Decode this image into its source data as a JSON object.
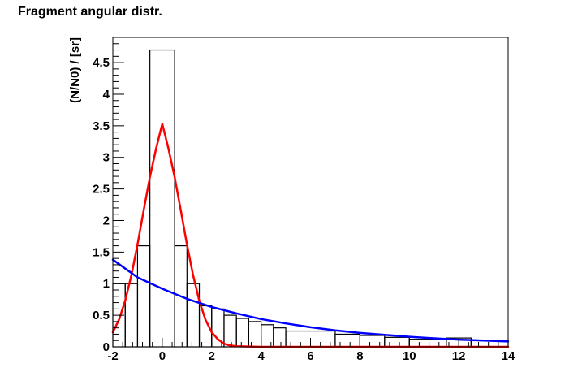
{
  "chart_data": {
    "type": "histogram",
    "title": "Fragment angular distr.",
    "xlabel": "",
    "ylabel": "(N/N0) / [sr]",
    "xlim": [
      -2,
      14
    ],
    "ylim": [
      0,
      4.9
    ],
    "x_ticks": [
      -2,
      0,
      2,
      4,
      6,
      8,
      10,
      12,
      14
    ],
    "y_ticks": [
      0,
      0.5,
      1,
      1.5,
      2,
      2.5,
      3,
      3.5,
      4,
      4.5
    ],
    "x_tick_labels": [
      "-2",
      "0",
      "2",
      "4",
      "6",
      "8",
      "10",
      "12",
      "14"
    ],
    "y_tick_labels": [
      "0",
      "0.5",
      "1",
      "1.5",
      "2",
      "2.5",
      "3",
      "3.5",
      "4",
      "4.5"
    ],
    "grid": false,
    "legend": "none",
    "histogram": {
      "color": "#000000",
      "bins": [
        {
          "x0": -2.0,
          "x1": -1.5,
          "y": 1.0
        },
        {
          "x0": -1.5,
          "x1": -1.0,
          "y": 1.0
        },
        {
          "x0": -1.0,
          "x1": -0.5,
          "y": 1.6
        },
        {
          "x0": -0.5,
          "x1": 0.5,
          "y": 4.7
        },
        {
          "x0": 0.5,
          "x1": 1.0,
          "y": 1.6
        },
        {
          "x0": 1.0,
          "x1": 1.5,
          "y": 1.0
        },
        {
          "x0": 1.5,
          "x1": 2.0,
          "y": 0.65
        },
        {
          "x0": 2.0,
          "x1": 2.5,
          "y": 0.6
        },
        {
          "x0": 2.5,
          "x1": 3.0,
          "y": 0.5
        },
        {
          "x0": 3.0,
          "x1": 3.5,
          "y": 0.45
        },
        {
          "x0": 3.5,
          "x1": 4.0,
          "y": 0.4
        },
        {
          "x0": 4.0,
          "x1": 4.5,
          "y": 0.35
        },
        {
          "x0": 4.5,
          "x1": 5.0,
          "y": 0.3
        },
        {
          "x0": 5.0,
          "x1": 7.0,
          "y": 0.25
        },
        {
          "x0": 7.0,
          "x1": 8.0,
          "y": 0.2
        },
        {
          "x0": 8.0,
          "x1": 9.0,
          "y": 0.18
        },
        {
          "x0": 9.0,
          "x1": 10.0,
          "y": 0.15
        },
        {
          "x0": 10.0,
          "x1": 11.5,
          "y": 0.12
        },
        {
          "x0": 11.5,
          "x1": 12.5,
          "y": 0.14
        },
        {
          "x0": 12.5,
          "x1": 14.0,
          "y": 0.1
        }
      ]
    },
    "curves": [
      {
        "color": "#ff0000",
        "x": [
          -2.0,
          -1.75,
          -1.5,
          -1.25,
          -1.0,
          -0.75,
          -0.5,
          -0.25,
          0.0,
          0.25,
          0.5,
          0.75,
          1.0,
          1.25,
          1.5,
          1.75,
          2.0,
          2.25,
          2.5,
          2.75,
          3.0,
          4.0,
          6.0,
          8.0,
          10.0,
          12.0,
          14.0
        ],
        "y": [
          0.23,
          0.43,
          0.73,
          1.13,
          1.62,
          2.16,
          2.69,
          3.14,
          3.53,
          3.14,
          2.69,
          2.16,
          1.62,
          1.13,
          0.73,
          0.43,
          0.23,
          0.12,
          0.05,
          0.02,
          0.01,
          0.0,
          0.0,
          0.0,
          0.0,
          0.0,
          0.0
        ]
      },
      {
        "color": "#0000ff",
        "x": [
          -2.0,
          -1.0,
          0.0,
          1.0,
          2.0,
          3.0,
          4.0,
          5.0,
          6.0,
          7.0,
          8.0,
          9.0,
          10.0,
          11.0,
          12.0,
          13.0,
          14.0
        ],
        "y": [
          1.38,
          1.1,
          0.92,
          0.76,
          0.63,
          0.53,
          0.44,
          0.37,
          0.31,
          0.26,
          0.22,
          0.19,
          0.16,
          0.135,
          0.115,
          0.1,
          0.085
        ]
      }
    ]
  }
}
